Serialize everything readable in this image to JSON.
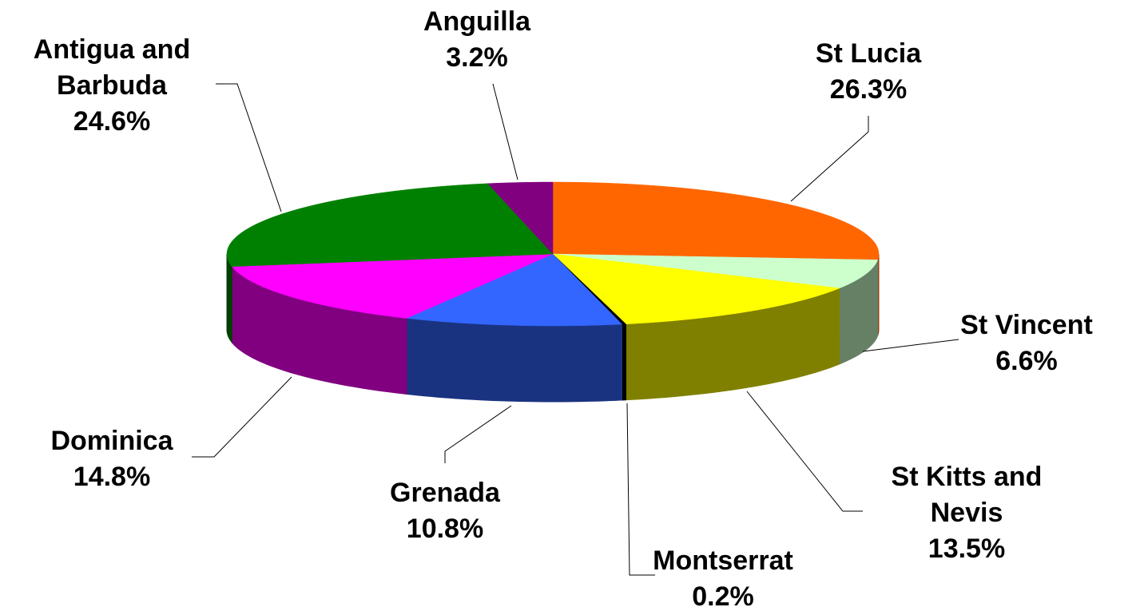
{
  "chart_data": {
    "type": "pie3d",
    "categories": [
      "St Lucia",
      "St Vincent",
      "St Kitts and Nevis",
      "Montserrat",
      "Grenada",
      "Dominica",
      "Antigua and Barbuda",
      "Anguilla"
    ],
    "values": [
      26.3,
      6.6,
      13.5,
      0.2,
      10.8,
      14.8,
      24.6,
      3.2
    ],
    "value_labels": [
      "26.3%",
      "6.6%",
      "13.5%",
      "0.2%",
      "10.8%",
      "14.8%",
      "24.6%",
      "3.2%"
    ],
    "colors": [
      "#FF6600",
      "#CCFFCC",
      "#FFFF00",
      "#000000",
      "#3366FF",
      "#FF00FF",
      "#008000",
      "#800080"
    ],
    "side_colors": [
      "#993D00",
      "#668066",
      "#808000",
      "#000000",
      "#1A3380",
      "#800080",
      "#004000",
      "#400040"
    ]
  }
}
